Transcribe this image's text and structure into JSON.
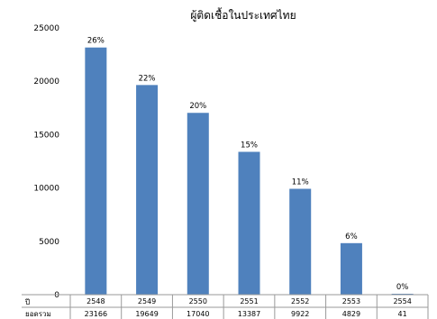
{
  "chart_data": {
    "type": "bar",
    "title": "ผู้ติดเชื้อในประเทศไทย",
    "categories": [
      "2548",
      "2549",
      "2550",
      "2551",
      "2552",
      "2553",
      "2554"
    ],
    "values": [
      23166,
      19649,
      17040,
      13387,
      9922,
      4829,
      41
    ],
    "percent_labels": [
      "26%",
      "22%",
      "20%",
      "15%",
      "11%",
      "6%",
      "0%"
    ],
    "ylim": [
      0,
      25000
    ],
    "y_ticks": [
      "0",
      "5000",
      "10000",
      "15000",
      "20000",
      "25000"
    ],
    "grid": false,
    "legend": "none",
    "table": {
      "row_label_year": "ปี",
      "row_label_total": "ยอดรวม",
      "totals": [
        "23166",
        "19649",
        "17040",
        "13387",
        "9922",
        "4829",
        "41"
      ]
    },
    "colors": {
      "bar": "#4f81bd"
    }
  }
}
